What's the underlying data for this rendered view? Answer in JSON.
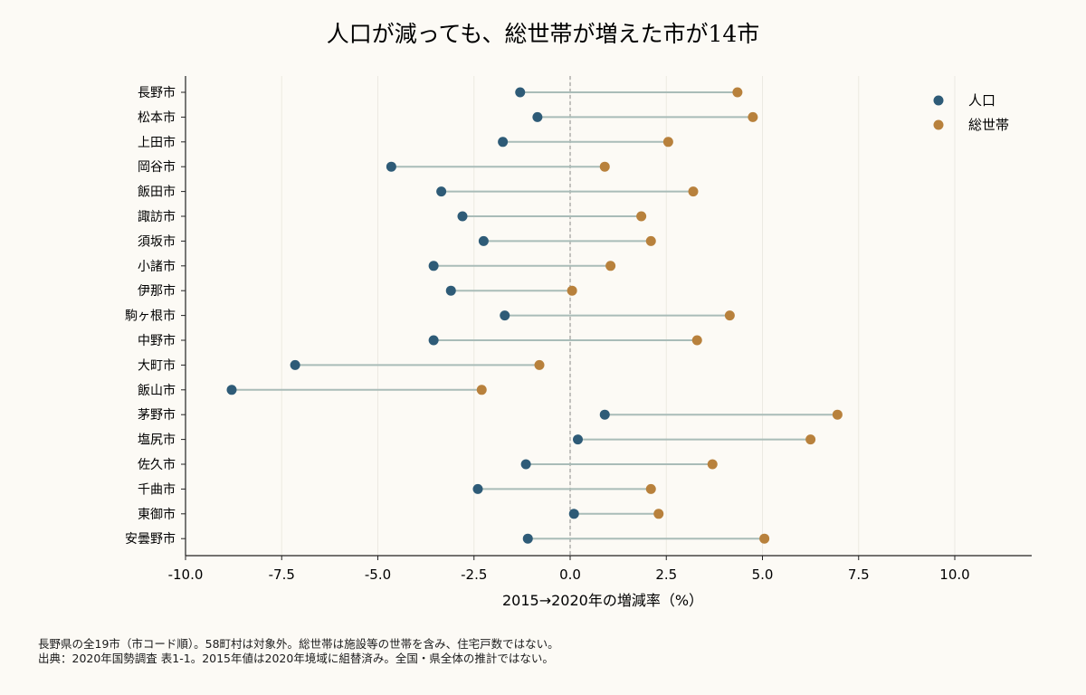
{
  "chart_data": {
    "type": "dumbbell",
    "title": "人口が減っても、総世帯が増えた市が14市",
    "xlabel": "2015→2020年の増減率（%）",
    "xlim": [
      -10.0,
      12.0
    ],
    "xticks": [
      -10.0,
      -7.5,
      -5.0,
      -2.5,
      0.0,
      2.5,
      5.0,
      7.5,
      10.0
    ],
    "xtick_labels": [
      "-10.0",
      "-7.5",
      "-5.0",
      "-2.5",
      "0.0",
      "2.5",
      "5.0",
      "7.5",
      "10.0"
    ],
    "reference_line": 0,
    "grid": "vertical",
    "legend_position": "top-right",
    "categories": [
      "長野市",
      "松本市",
      "上田市",
      "岡谷市",
      "飯田市",
      "諏訪市",
      "須坂市",
      "小諸市",
      "伊那市",
      "駒ヶ根市",
      "中野市",
      "大町市",
      "飯山市",
      "茅野市",
      "塩尻市",
      "佐久市",
      "千曲市",
      "東御市",
      "安曇野市"
    ],
    "series": [
      {
        "name": "人口",
        "color": "#2e5b77",
        "values": [
          -1.3,
          -0.85,
          -1.75,
          -4.65,
          -3.35,
          -2.8,
          -2.25,
          -3.55,
          -3.1,
          -1.7,
          -3.55,
          -7.15,
          -8.8,
          0.9,
          0.2,
          -1.15,
          -2.4,
          0.1,
          -1.1
        ]
      },
      {
        "name": "総世帯",
        "color": "#b8813c",
        "values": [
          4.35,
          4.75,
          2.55,
          0.9,
          3.2,
          1.85,
          2.1,
          1.05,
          0.05,
          4.15,
          3.3,
          -0.8,
          -2.3,
          6.95,
          6.25,
          3.7,
          2.1,
          2.3,
          5.05
        ]
      }
    ],
    "notes": [
      "長野県の全19市（市コード順）。58町村は対象外。総世帯は施設等の世帯を含み、住宅戸数ではない。",
      "出典：2020年国勢調査 表1-1。2015年値は2020年境域に組替済み。全国・県全体の推計ではない。"
    ]
  },
  "colors": {
    "background": "#fcfaf5",
    "connector": "#a9bcb8",
    "grid": "#ece9e2",
    "reference": "#888888"
  }
}
